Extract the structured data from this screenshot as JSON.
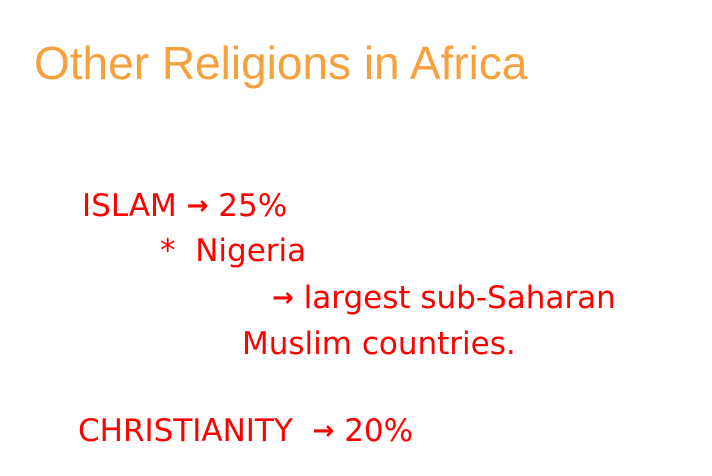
{
  "slide": {
    "title": "Other Religions in Africa",
    "lines": {
      "islam": {
        "label": "ISLAM",
        "arrow": "→",
        "value": "25%"
      },
      "nigeria": {
        "bullet": "*",
        "text": "Nigeria"
      },
      "largest": {
        "arrow": "→",
        "text": "largest sub-Saharan"
      },
      "muslim": {
        "text": "Muslim countries."
      },
      "christianity": {
        "label": "CHRISTIANITY",
        "arrow": "→",
        "value": "20%"
      }
    }
  }
}
